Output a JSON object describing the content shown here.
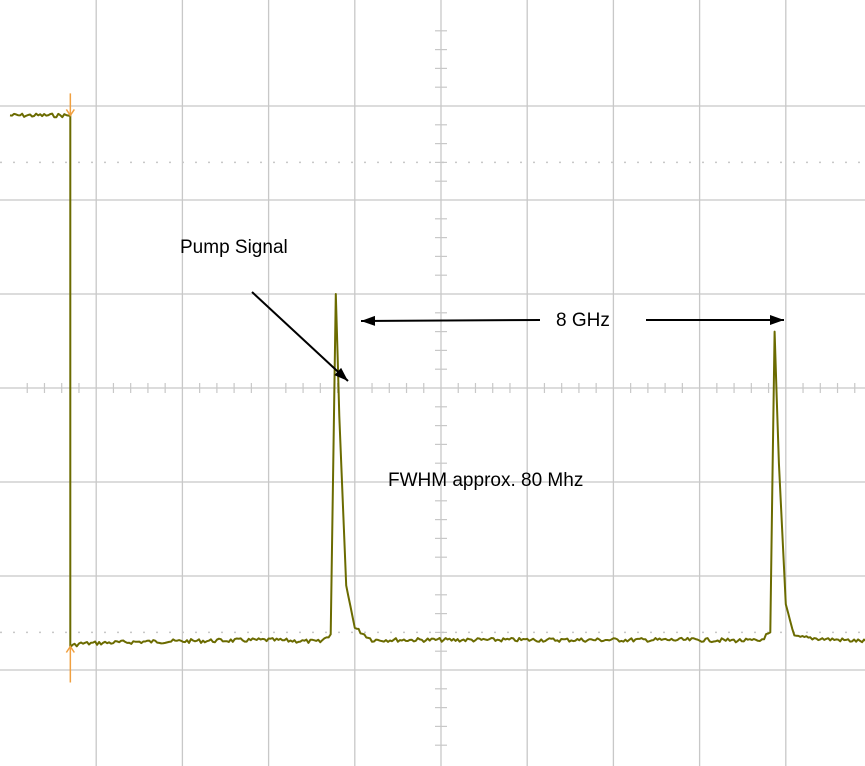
{
  "chart_data": {
    "type": "line",
    "title": "",
    "xlabel": "",
    "ylabel": "",
    "grid": true,
    "x_divisions": 10,
    "y_divisions": 8,
    "xlim": [
      0,
      10
    ],
    "ylim": [
      0,
      8
    ],
    "series": [
      {
        "color": "#6b6b00",
        "points": [
          [
            0.0,
            6.9
          ],
          [
            0.7,
            6.9
          ],
          [
            0.7,
            1.25
          ],
          [
            0.8,
            1.28
          ],
          [
            1.5,
            1.3
          ],
          [
            3.0,
            1.32
          ],
          [
            3.6,
            1.3
          ],
          [
            3.72,
            1.38
          ],
          [
            3.78,
            5.0
          ],
          [
            3.82,
            3.7
          ],
          [
            3.9,
            1.9
          ],
          [
            4.0,
            1.45
          ],
          [
            4.2,
            1.32
          ],
          [
            6.0,
            1.32
          ],
          [
            8.0,
            1.32
          ],
          [
            8.7,
            1.31
          ],
          [
            8.82,
            1.4
          ],
          [
            8.87,
            4.6
          ],
          [
            8.92,
            3.2
          ],
          [
            9.0,
            1.7
          ],
          [
            9.1,
            1.35
          ],
          [
            10.0,
            1.3
          ]
        ]
      }
    ],
    "annotations": [
      {
        "text": "Pump Signal"
      },
      {
        "text": "8 GHz"
      },
      {
        "text": "FWHM approx. 80 Mhz"
      }
    ]
  },
  "colors": {
    "trace": "#6b6b00",
    "grid": "#c8c8c8",
    "marker": "#f0a040",
    "annotation": "#000000"
  }
}
